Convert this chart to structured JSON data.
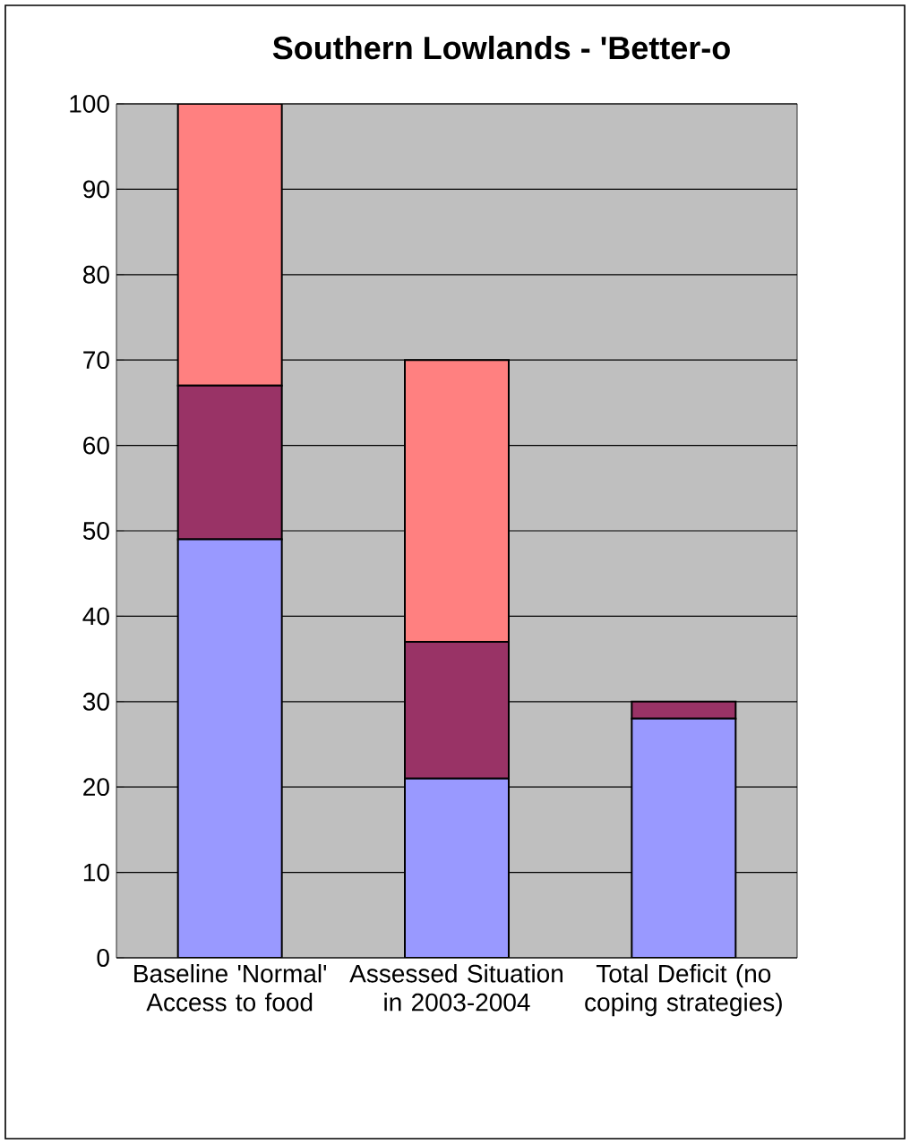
{
  "chart_data": {
    "type": "bar",
    "stacked": true,
    "title": "Southern Lowlands - 'Better-o",
    "categories": [
      "Baseline 'Normal' Access to food",
      "Assessed Situation in 2003-2004",
      "Total Deficit (no coping strategies)"
    ],
    "series": [
      {
        "color": "#9999ff",
        "values": [
          49,
          21,
          28
        ]
      },
      {
        "color": "#993366",
        "values": [
          18,
          16,
          2
        ]
      },
      {
        "color": "#ff8080",
        "values": [
          33,
          33,
          0
        ]
      }
    ],
    "ylim": [
      0,
      100
    ],
    "yticks": [
      0,
      10,
      20,
      30,
      40,
      50,
      60,
      70,
      80,
      90,
      100
    ],
    "grid": "y"
  }
}
